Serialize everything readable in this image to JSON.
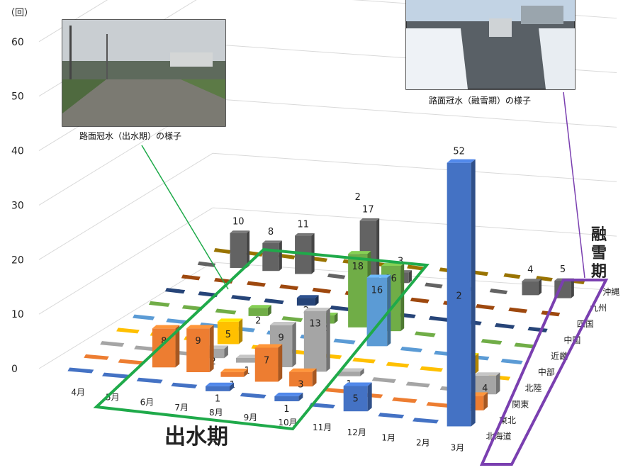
{
  "chart_data": {
    "type": "bar",
    "unit_label": "（回）",
    "y_ticks": [
      0,
      10,
      20,
      30,
      40,
      50,
      60
    ],
    "months": [
      "4月",
      "5月",
      "6月",
      "7月",
      "8月",
      "9月",
      "10月",
      "11月",
      "12月",
      "1月",
      "2月",
      "3月"
    ],
    "regions": [
      "北海道",
      "東北",
      "関東",
      "北陸",
      "中部",
      "近畿",
      "中国",
      "四国",
      "九州",
      "沖縄"
    ],
    "region_colors": {
      "北海道": "#4472c4",
      "東北": "#ed7d31",
      "関東": "#a5a5a5",
      "北陸": "#ffc000",
      "中部": "#5b9bd5",
      "近畿": "#70ad47",
      "中国": "#264478",
      "四国": "#9e480e",
      "九州": "#636363",
      "沖縄": "#997300"
    },
    "bars": [
      {
        "month": "6月",
        "region": "東北",
        "value": 8,
        "color": "#ed7d31"
      },
      {
        "month": "7月",
        "region": "東北",
        "value": 9,
        "color": "#ed7d31"
      },
      {
        "month": "7月",
        "region": "北陸",
        "value": 5,
        "color": "#ffc000"
      },
      {
        "month": "7月",
        "region": "関東",
        "value": 2,
        "color": "#a5a5a5"
      },
      {
        "month": "7月",
        "region": "近畿",
        "value": 2,
        "color": "#70ad47"
      },
      {
        "month": "8月",
        "region": "東北",
        "value": 1,
        "color": "#ed7d31"
      },
      {
        "month": "8月",
        "region": "関東",
        "value": 1,
        "color": "#a5a5a5"
      },
      {
        "month": "8月",
        "region": "中国",
        "value": 2,
        "color": "#264478"
      },
      {
        "month": "8月",
        "region": "北海道",
        "value": 1,
        "color": "#4472c4"
      },
      {
        "month": "9月",
        "region": "東北",
        "value": 7,
        "color": "#ed7d31"
      },
      {
        "month": "9月",
        "region": "関東",
        "value": 9,
        "color": "#a5a5a5"
      },
      {
        "month": "9月",
        "region": "近畿",
        "value": 2,
        "color": "#70ad47"
      },
      {
        "month": "10月",
        "region": "東北",
        "value": 3,
        "color": "#ed7d31"
      },
      {
        "month": "10月",
        "region": "関東",
        "value": 13,
        "color": "#a5a5a5"
      },
      {
        "month": "10月",
        "region": "北海道",
        "value": 1,
        "color": "#4472c4"
      },
      {
        "month": "10月",
        "region": "近畿",
        "value": 18,
        "color": "#70ad47"
      },
      {
        "month": "10月",
        "region": "四国",
        "value": 2,
        "color": "#9e480e"
      },
      {
        "month": "11月",
        "region": "近畿",
        "value": 16,
        "color": "#70ad47"
      },
      {
        "month": "11月",
        "region": "中部",
        "value": 16,
        "color": "#5b9bd5"
      },
      {
        "month": "11月",
        "region": "関東",
        "value": 1,
        "color": "#a5a5a5"
      },
      {
        "month": "12月",
        "region": "北海道",
        "value": 5,
        "color": "#4472c4"
      },
      {
        "month": "2月",
        "region": "北陸",
        "value": 4,
        "color": "#ffc000"
      },
      {
        "month": "3月",
        "region": "北海道",
        "value": 52,
        "color": "#4472c4"
      },
      {
        "month": "3月",
        "region": "関東",
        "value": 4,
        "color": "#a5a5a5"
      },
      {
        "month": "3月",
        "region": "東北",
        "value": 3,
        "color": "#ed7d31"
      },
      {
        "month": "5月",
        "region": "九州",
        "value": 10,
        "color": "#636363"
      },
      {
        "month": "6月",
        "region": "九州",
        "value": 8,
        "color": "#636363"
      },
      {
        "month": "7月",
        "region": "九州",
        "value": 11,
        "color": "#636363"
      },
      {
        "month": "9月",
        "region": "九州",
        "value": 17,
        "color": "#636363"
      },
      {
        "month": "10月",
        "region": "九州",
        "value": 3,
        "color": "#636363"
      },
      {
        "month": "2月",
        "region": "九州",
        "value": 4,
        "color": "#636363"
      },
      {
        "month": "3月",
        "region": "九州",
        "value": 5,
        "color": "#636363"
      }
    ],
    "extra_labels": [
      {
        "text": "2",
        "month": "3月",
        "region": "北海道",
        "color": "#ed7d31"
      },
      {
        "text": "2",
        "month": "10月",
        "region": "近畿",
        "color": "#ed7d31"
      }
    ]
  },
  "annotations": {
    "flood_label": "出水期",
    "snow_label_1": "融",
    "snow_label_2": "雪",
    "snow_label_3": "期",
    "flood_photo_caption": "路面冠水（出水期）の様子",
    "snow_photo_caption": "路面冠水（融雪期）の様子",
    "flood_color": "#1faa4a",
    "snow_color": "#7a3fb0"
  }
}
